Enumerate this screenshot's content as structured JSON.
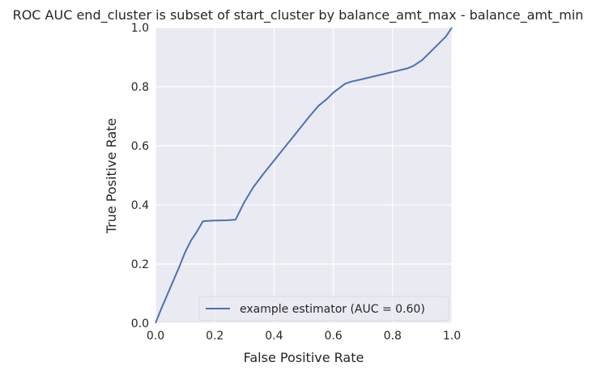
{
  "chart_data": {
    "type": "line",
    "title": "ROC AUC end_cluster is subset of start_cluster by balance_amt_max - balance_amt_min",
    "xlabel": "False Positive Rate",
    "ylabel": "True Positive Rate",
    "xlim": [
      0,
      1
    ],
    "ylim": [
      0,
      1
    ],
    "xticks": [
      "0.0",
      "0.2",
      "0.4",
      "0.6",
      "0.8",
      "1.0"
    ],
    "yticks": [
      "0.0",
      "0.2",
      "0.4",
      "0.6",
      "0.8",
      "1.0"
    ],
    "grid": true,
    "legend_position": "lower-right",
    "colors": {
      "series": "#4c72b0",
      "plot_bg": "#eaeaf2",
      "grid": "#ffffff"
    },
    "series": [
      {
        "name": "example estimator (AUC = 0.60)",
        "x": [
          0,
          0.02,
          0.05,
          0.08,
          0.1,
          0.12,
          0.14,
          0.16,
          0.2,
          0.24,
          0.27,
          0.28,
          0.3,
          0.33,
          0.36,
          0.4,
          0.44,
          0.48,
          0.52,
          0.55,
          0.58,
          0.6,
          0.62,
          0.64,
          0.66,
          0.7,
          0.75,
          0.8,
          0.85,
          0.87,
          0.9,
          0.93,
          0.96,
          0.98,
          1.0
        ],
        "y": [
          0,
          0.05,
          0.12,
          0.19,
          0.24,
          0.28,
          0.31,
          0.345,
          0.347,
          0.348,
          0.35,
          0.37,
          0.41,
          0.46,
          0.5,
          0.55,
          0.6,
          0.65,
          0.7,
          0.735,
          0.76,
          0.78,
          0.795,
          0.81,
          0.817,
          0.826,
          0.838,
          0.85,
          0.862,
          0.87,
          0.89,
          0.92,
          0.95,
          0.97,
          1.0
        ]
      }
    ]
  }
}
